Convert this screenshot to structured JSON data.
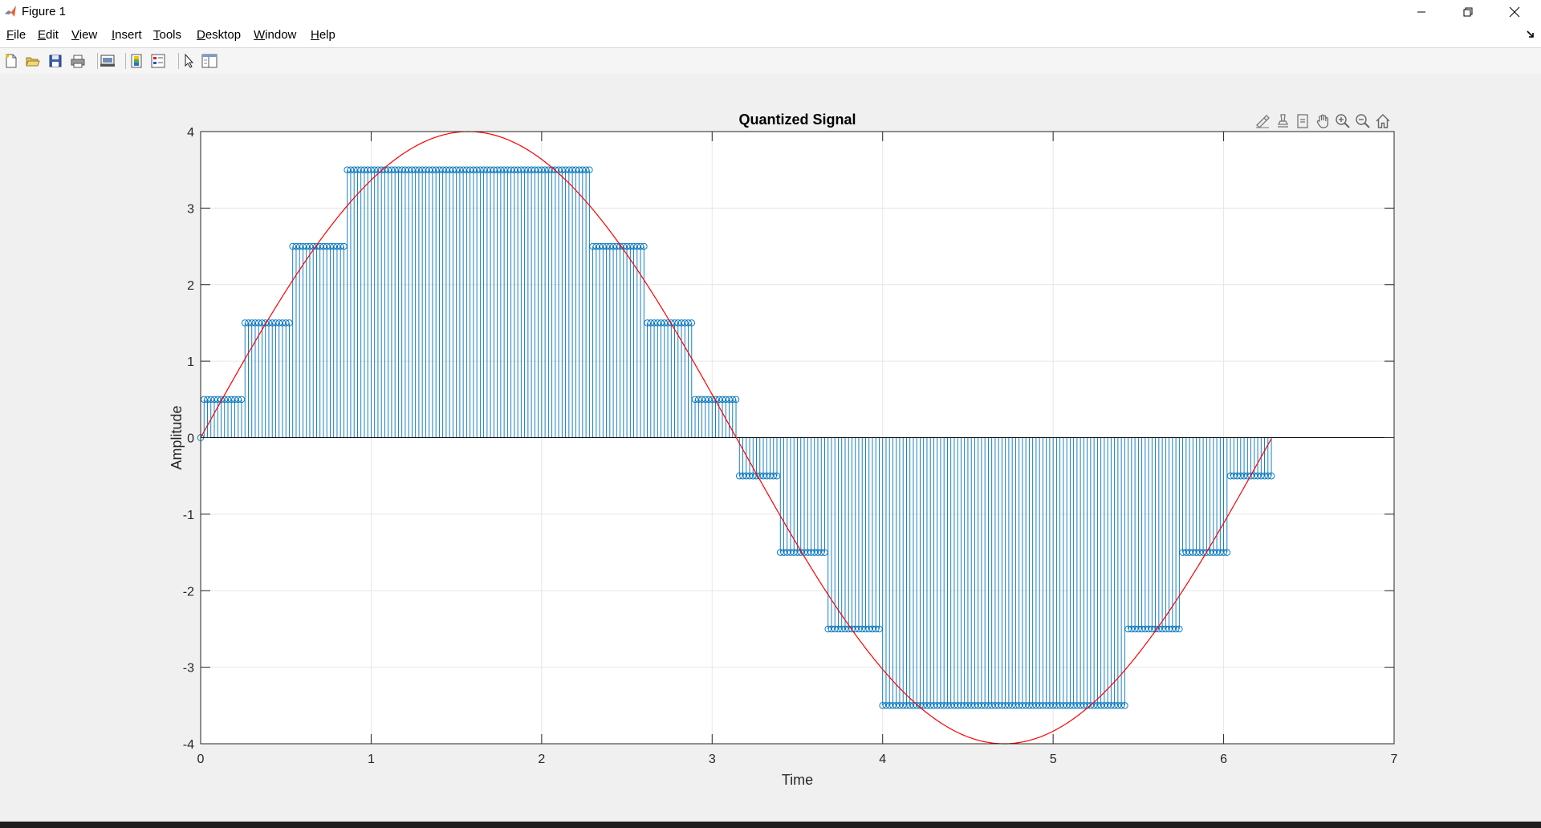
{
  "window": {
    "title": "Figure 1"
  },
  "menu": {
    "items": [
      {
        "label": "File",
        "mnemonic": "F",
        "rest": "ile"
      },
      {
        "label": "Edit",
        "mnemonic": "E",
        "rest": "dit"
      },
      {
        "label": "View",
        "mnemonic": "V",
        "rest": "iew"
      },
      {
        "label": "Insert",
        "mnemonic": "I",
        "rest": "nsert"
      },
      {
        "label": "Tools",
        "mnemonic": "T",
        "rest": "ools"
      },
      {
        "label": "Desktop",
        "mnemonic": "D",
        "rest": "esktop"
      },
      {
        "label": "Window",
        "mnemonic": "W",
        "rest": "indow"
      },
      {
        "label": "Help",
        "mnemonic": "H",
        "rest": "elp"
      }
    ]
  },
  "toolbar": {
    "icons": [
      "new-figure-icon",
      "open-file-icon",
      "save-icon",
      "print-icon",
      "link-plot-icon",
      "colorbar-icon",
      "legend-icon",
      "edit-plot-icon",
      "property-inspector-icon"
    ]
  },
  "axes_toolbar": {
    "icons": [
      "brush-icon",
      "data-tips-icon",
      "rotate-icon",
      "pan-icon",
      "zoom-in-icon",
      "zoom-out-icon",
      "home-icon"
    ]
  },
  "colors": {
    "stem": "#0072bd",
    "sine": "#ff0000",
    "baseline": "#000000",
    "grid": "#e6e6e6"
  },
  "chart_data": {
    "type": "line",
    "title": "Quantized Signal",
    "xlabel": "Time",
    "ylabel": "Amplitude",
    "xlim": [
      0,
      7
    ],
    "ylim": [
      -4,
      4
    ],
    "xticks": [
      0,
      1,
      2,
      3,
      4,
      5,
      6,
      7
    ],
    "yticks": [
      -4,
      -3,
      -2,
      -1,
      0,
      1,
      2,
      3,
      4
    ],
    "grid": true,
    "series": [
      {
        "style": "stem",
        "sample_step": 0.02,
        "x_range": [
          0,
          6.28
        ],
        "quantization": "floor(4*sin(t)) + 0.5, with t = 0 mapped to 0",
        "levels": [
          -3.5,
          -2.5,
          -1.5,
          -0.5,
          0.5,
          1.5,
          2.5,
          3.5
        ]
      },
      {
        "style": "line",
        "function": "4*sin(t)",
        "x_range": [
          0,
          6.28
        ]
      }
    ]
  }
}
